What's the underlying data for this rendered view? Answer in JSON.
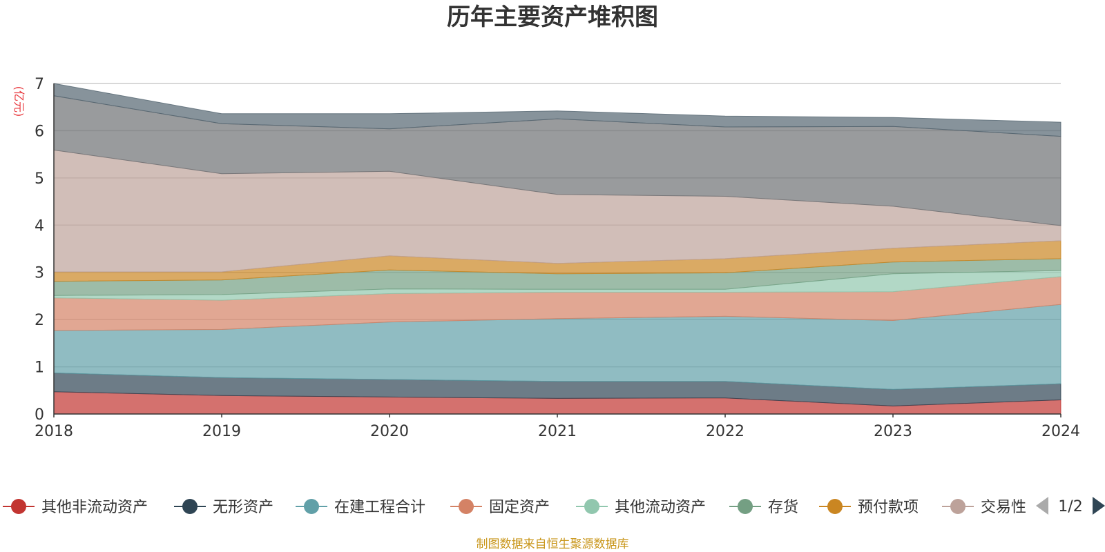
{
  "title": "历年主要资产堆积图",
  "unit_label": "(亿元)",
  "footer": "制图数据来自恒生聚源数据库",
  "legend_pager": "1/2",
  "chart_data": {
    "type": "area",
    "stacked": true,
    "title": "历年主要资产堆积图",
    "ylabel": "(亿元)",
    "ylim": [
      0,
      7
    ],
    "yticks": [
      "0",
      "1",
      "2",
      "3",
      "4",
      "5",
      "6",
      "7"
    ],
    "categories": [
      "2018",
      "2019",
      "2020",
      "2021",
      "2022",
      "2023",
      "2024"
    ],
    "series": [
      {
        "name": "其他非流动资产",
        "color": "#c23531",
        "values": [
          0.47,
          0.39,
          0.36,
          0.33,
          0.34,
          0.17,
          0.3
        ],
        "in_legend": true
      },
      {
        "name": "无形资产",
        "color": "#2f4554",
        "values": [
          0.4,
          0.38,
          0.37,
          0.36,
          0.35,
          0.35,
          0.34
        ],
        "in_legend": true
      },
      {
        "name": "在建工程合计",
        "color": "#61a0a8",
        "values": [
          0.9,
          1.02,
          1.22,
          1.33,
          1.38,
          1.46,
          1.68
        ],
        "in_legend": true
      },
      {
        "name": "固定资产",
        "color": "#d48265",
        "values": [
          0.69,
          0.62,
          0.6,
          0.56,
          0.51,
          0.61,
          0.59
        ],
        "in_legend": true
      },
      {
        "name": "其他流动资产",
        "color": "#91c7ae",
        "values": [
          0.05,
          0.12,
          0.1,
          0.06,
          0.06,
          0.38,
          0.13
        ],
        "in_legend": true
      },
      {
        "name": "存货",
        "color": "#749f83",
        "values": [
          0.3,
          0.31,
          0.4,
          0.33,
          0.35,
          0.25,
          0.25
        ],
        "in_legend": true
      },
      {
        "name": "预付款项",
        "color": "#ca8622",
        "values": [
          0.2,
          0.17,
          0.3,
          0.22,
          0.3,
          0.29,
          0.38
        ],
        "in_legend": true
      },
      {
        "name": "交易性金融资产",
        "color": "#bda29a",
        "values": [
          2.58,
          2.08,
          1.79,
          1.46,
          1.32,
          0.89,
          0.32
        ],
        "in_legend": true
      },
      {
        "name": "",
        "color": "#6e7074",
        "values": [
          1.15,
          1.06,
          0.9,
          1.6,
          1.47,
          1.69,
          1.89
        ],
        "in_legend": false
      },
      {
        "name": "",
        "color": "#546570",
        "values": [
          0.26,
          0.21,
          0.32,
          0.17,
          0.23,
          0.19,
          0.3
        ],
        "in_legend": false
      }
    ]
  },
  "legend": [
    {
      "label": "其他非流动资产",
      "color": "#c23531"
    },
    {
      "label": "无形资产",
      "color": "#2f4554"
    },
    {
      "label": "在建工程合计",
      "color": "#61a0a8"
    },
    {
      "label": "固定资产",
      "color": "#d48265"
    },
    {
      "label": "其他流动资产",
      "color": "#91c7ae"
    },
    {
      "label": "存货",
      "color": "#749f83"
    },
    {
      "label": "预付款项",
      "color": "#ca8622"
    },
    {
      "label": "交易性",
      "color": "#bda29a"
    }
  ]
}
